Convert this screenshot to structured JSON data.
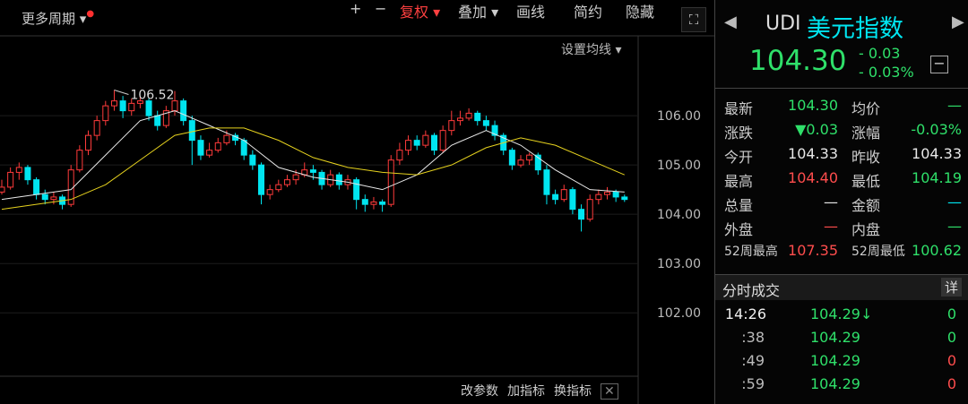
{
  "toolbar": {
    "period": "更多周期",
    "buttons": [
      "+",
      "−",
      "复权",
      "叠加",
      "画线",
      "简约",
      "隐藏"
    ],
    "ma_setting": "设置均线"
  },
  "chart_data": {
    "type": "candlestick",
    "open": [
      104.45,
      104.55,
      104.85,
      104.95,
      104.7,
      104.4,
      104.3,
      104.35,
      104.2,
      104.9,
      105.3,
      105.6,
      105.9,
      106.2,
      106.3,
      106.1,
      106.25,
      106.3,
      106.0,
      105.8,
      106.1,
      106.3,
      105.9,
      105.5,
      105.2,
      105.3,
      105.45,
      105.6,
      105.5,
      105.2,
      105.0,
      104.4,
      104.5,
      104.6,
      104.7,
      104.8,
      104.9,
      104.85,
      104.6,
      104.8,
      104.6,
      104.7,
      104.3,
      104.2,
      104.25,
      104.2,
      105.1,
      105.3,
      105.5,
      105.4,
      105.6,
      105.3,
      105.7,
      105.9,
      105.95,
      106.05,
      105.9,
      105.8,
      105.6,
      105.3,
      105.0,
      105.1,
      105.2,
      104.9,
      104.4,
      104.3,
      104.5,
      104.1,
      103.9,
      104.3,
      104.4,
      104.45,
      104.35
    ],
    "high": [
      104.7,
      104.95,
      105.05,
      105.0,
      104.75,
      104.5,
      104.45,
      104.4,
      105.0,
      105.4,
      105.7,
      106.0,
      106.3,
      106.52,
      106.4,
      106.35,
      106.4,
      106.35,
      106.1,
      106.2,
      106.5,
      106.35,
      106.0,
      105.6,
      105.45,
      105.55,
      105.7,
      105.65,
      105.55,
      105.3,
      105.05,
      104.6,
      104.7,
      104.8,
      104.9,
      105.05,
      105.0,
      104.9,
      104.9,
      104.85,
      104.8,
      104.75,
      104.4,
      104.35,
      104.3,
      105.2,
      105.45,
      105.6,
      105.6,
      105.7,
      105.65,
      105.8,
      106.1,
      106.1,
      106.15,
      106.1,
      106.0,
      105.9,
      105.65,
      105.35,
      105.2,
      105.25,
      105.25,
      105.0,
      104.5,
      104.6,
      104.55,
      104.2,
      104.4,
      104.5,
      104.55,
      104.5,
      104.4
    ],
    "low": [
      104.4,
      104.5,
      104.7,
      104.6,
      104.3,
      104.2,
      104.2,
      104.1,
      104.15,
      104.85,
      105.2,
      105.5,
      105.8,
      106.1,
      105.95,
      106.0,
      106.15,
      105.9,
      105.7,
      105.75,
      106.0,
      105.8,
      105.0,
      105.1,
      105.15,
      105.25,
      105.4,
      105.4,
      105.1,
      104.9,
      104.2,
      104.3,
      104.45,
      104.55,
      104.6,
      104.75,
      104.7,
      104.5,
      104.55,
      104.5,
      104.5,
      104.1,
      104.05,
      104.1,
      104.05,
      104.15,
      105.0,
      105.2,
      105.3,
      105.35,
      105.2,
      105.25,
      105.6,
      105.8,
      105.9,
      105.8,
      105.7,
      105.5,
      105.2,
      104.9,
      104.95,
      105.0,
      104.8,
      104.2,
      104.2,
      104.25,
      104.0,
      103.65,
      103.85,
      104.2,
      104.3,
      104.25,
      104.25
    ],
    "close": [
      104.55,
      104.85,
      104.95,
      104.7,
      104.4,
      104.3,
      104.35,
      104.2,
      104.9,
      105.3,
      105.6,
      105.9,
      106.2,
      106.3,
      106.1,
      106.25,
      106.3,
      106.0,
      105.8,
      106.1,
      106.3,
      105.9,
      105.5,
      105.2,
      105.3,
      105.45,
      105.6,
      105.5,
      105.2,
      105.0,
      104.4,
      104.5,
      104.6,
      104.7,
      104.8,
      104.9,
      104.85,
      104.6,
      104.8,
      104.6,
      104.7,
      104.3,
      104.2,
      104.25,
      104.2,
      105.1,
      105.3,
      105.5,
      105.4,
      105.6,
      105.3,
      105.7,
      105.9,
      105.95,
      106.05,
      105.9,
      105.8,
      105.6,
      105.3,
      105.0,
      105.1,
      105.2,
      104.9,
      104.4,
      104.3,
      104.5,
      104.1,
      103.9,
      104.3,
      104.4,
      104.45,
      104.35,
      104.3
    ],
    "up_color": "#ff3b3b",
    "down_color": "#00e5f0",
    "ylim": [
      100.35,
      107.62
    ],
    "yticks": [
      {
        "value": 106,
        "label": "106.00"
      },
      {
        "value": 105,
        "label": "105.00"
      },
      {
        "value": 104,
        "label": "104.00"
      },
      {
        "value": 103,
        "label": "103.00"
      },
      {
        "value": 102,
        "label": "102.00"
      }
    ],
    "grid": true,
    "annotation": {
      "index": 13,
      "value": 106.52
    },
    "ma": [
      {
        "color": "#e8e8e8",
        "x": [
          0,
          8,
          12,
          16,
          20,
          24,
          28,
          32,
          36,
          40,
          44,
          48,
          52,
          56,
          60,
          64,
          68,
          72
        ],
        "values": [
          104.3,
          104.5,
          105.2,
          105.9,
          106.1,
          105.8,
          105.5,
          104.95,
          104.75,
          104.65,
          104.5,
          104.8,
          105.4,
          105.7,
          105.4,
          104.9,
          104.5,
          104.45
        ]
      },
      {
        "color": "#e6d21e",
        "x": [
          0,
          8,
          12,
          16,
          20,
          24,
          28,
          32,
          36,
          40,
          44,
          48,
          52,
          56,
          60,
          64,
          68,
          72
        ],
        "values": [
          104.1,
          104.3,
          104.6,
          105.1,
          105.6,
          105.75,
          105.75,
          105.5,
          105.15,
          104.95,
          104.85,
          104.8,
          105.0,
          105.35,
          105.55,
          105.4,
          105.1,
          104.8
        ]
      }
    ]
  },
  "indicator_buttons": [
    "改参数",
    "加指标",
    "换指标"
  ],
  "quote": {
    "code": "UDI",
    "name": "美元指数",
    "price": "104.30",
    "change": "- 0.03",
    "change_pct": "- 0.03%"
  },
  "stats": [
    [
      "最新",
      "104.30",
      "均价",
      "—"
    ],
    [
      "涨跌",
      "▼0.03",
      "涨幅",
      "-0.03%"
    ],
    [
      "今开",
      "104.33",
      "昨收",
      "104.33"
    ],
    [
      "最高",
      "104.40",
      "最低",
      "104.19"
    ],
    [
      "总量",
      "—",
      "金额",
      "—"
    ],
    [
      "外盘",
      "—",
      "内盘",
      "—"
    ],
    [
      "52周最高",
      "107.35",
      "52周最低",
      "100.62"
    ]
  ],
  "trades_title": "分时成交",
  "trades_detail": "详",
  "trades": [
    [
      "14:26",
      "104.29↓",
      "0"
    ],
    [
      ":38",
      "104.29",
      "0"
    ],
    [
      ":49",
      "104.29",
      "0"
    ],
    [
      ":59",
      "104.29",
      "0"
    ]
  ]
}
